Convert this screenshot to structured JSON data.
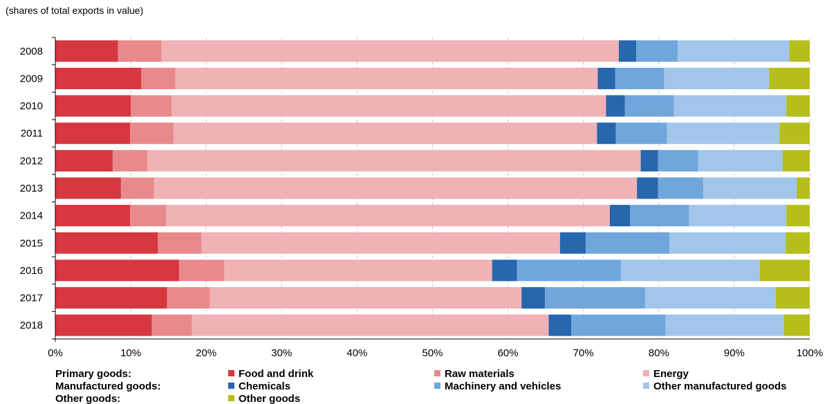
{
  "chart_data": {
    "type": "bar",
    "orientation": "horizontal",
    "stacked": true,
    "subtitle": "(shares of total exports in value)",
    "title": "",
    "xlabel": "",
    "ylabel": "",
    "xlim": [
      0,
      100
    ],
    "x_ticks": [
      "0%",
      "10%",
      "20%",
      "30%",
      "40%",
      "50%",
      "60%",
      "70%",
      "80%",
      "90%",
      "100%"
    ],
    "grid": "vertical dashed",
    "legend_position": "bottom",
    "categories": [
      "2008",
      "2009",
      "2010",
      "2011",
      "2012",
      "2013",
      "2014",
      "2015",
      "2016",
      "2017",
      "2018"
    ],
    "legend_groups": [
      {
        "label": "Primary goods:",
        "series": [
          "Food and drink",
          "Raw materials",
          "Energy"
        ]
      },
      {
        "label": "Manufactured goods:",
        "series": [
          "Chemicals",
          "Machinery and vehicles",
          "Other manufactured goods"
        ]
      },
      {
        "label": "Other goods:",
        "series": [
          "Other goods"
        ]
      }
    ],
    "series": [
      {
        "name": "Food and drink",
        "color": "#d7373f",
        "values": [
          8.3,
          11.4,
          10.0,
          9.9,
          7.6,
          8.7,
          9.9,
          13.6,
          16.4,
          14.8,
          12.8
        ]
      },
      {
        "name": "Raw materials",
        "color": "#e88a8c",
        "values": [
          5.8,
          4.5,
          5.4,
          5.8,
          4.6,
          4.4,
          4.8,
          5.8,
          6.0,
          5.7,
          5.3
        ]
      },
      {
        "name": "Energy",
        "color": "#f0b2b5",
        "values": [
          60.6,
          56.0,
          57.6,
          56.1,
          65.4,
          64.0,
          58.8,
          47.5,
          35.5,
          41.3,
          47.3
        ]
      },
      {
        "name": "Chemicals",
        "color": "#2667ad",
        "values": [
          2.3,
          2.3,
          2.5,
          2.5,
          2.3,
          2.8,
          2.7,
          3.4,
          3.3,
          3.1,
          3.0
        ]
      },
      {
        "name": "Machinery and vehicles",
        "color": "#6fa7dd",
        "values": [
          5.5,
          6.5,
          6.5,
          6.8,
          5.3,
          6.0,
          7.8,
          11.1,
          13.8,
          13.3,
          12.5
        ]
      },
      {
        "name": "Other manufactured goods",
        "color": "#a2c6ea",
        "values": [
          14.8,
          13.9,
          14.9,
          14.9,
          11.2,
          12.4,
          12.9,
          15.4,
          18.4,
          17.3,
          15.7
        ]
      },
      {
        "name": "Other goods",
        "color": "#b5be1a",
        "values": [
          2.7,
          5.4,
          3.1,
          4.0,
          3.6,
          1.7,
          3.1,
          3.2,
          6.6,
          4.5,
          3.4
        ]
      }
    ]
  }
}
